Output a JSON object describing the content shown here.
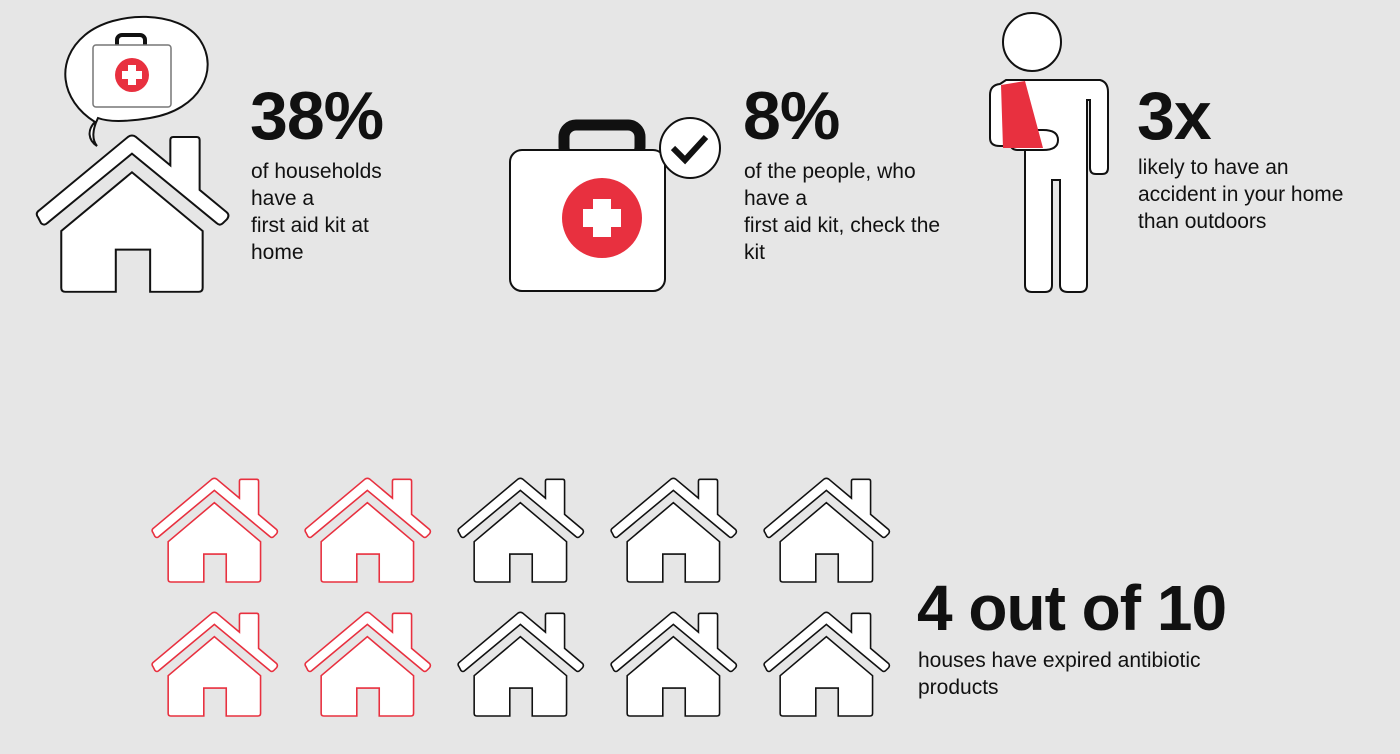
{
  "colors": {
    "background": "#e6e6e6",
    "accent": "#e8303f",
    "outline": "#111111"
  },
  "stats": [
    {
      "value": "38%",
      "description": "of households\nhave a\nfirst aid kit at\nhome",
      "icon": "house-with-first-aid-kit-speech-bubble-icon"
    },
    {
      "value": "8%",
      "description": "of the people, who\nhave a\nfirst aid kit, check the\nkit",
      "icon": "first-aid-kit-checkmark-icon"
    },
    {
      "value": "3x",
      "description": "likely to have an\naccident in your home\nthan outdoors",
      "icon": "person-arm-sling-icon"
    }
  ],
  "houses": {
    "value": "4 out of 10",
    "description": "houses have expired antibiotic\nproducts",
    "highlighted": 4,
    "total": 10
  }
}
